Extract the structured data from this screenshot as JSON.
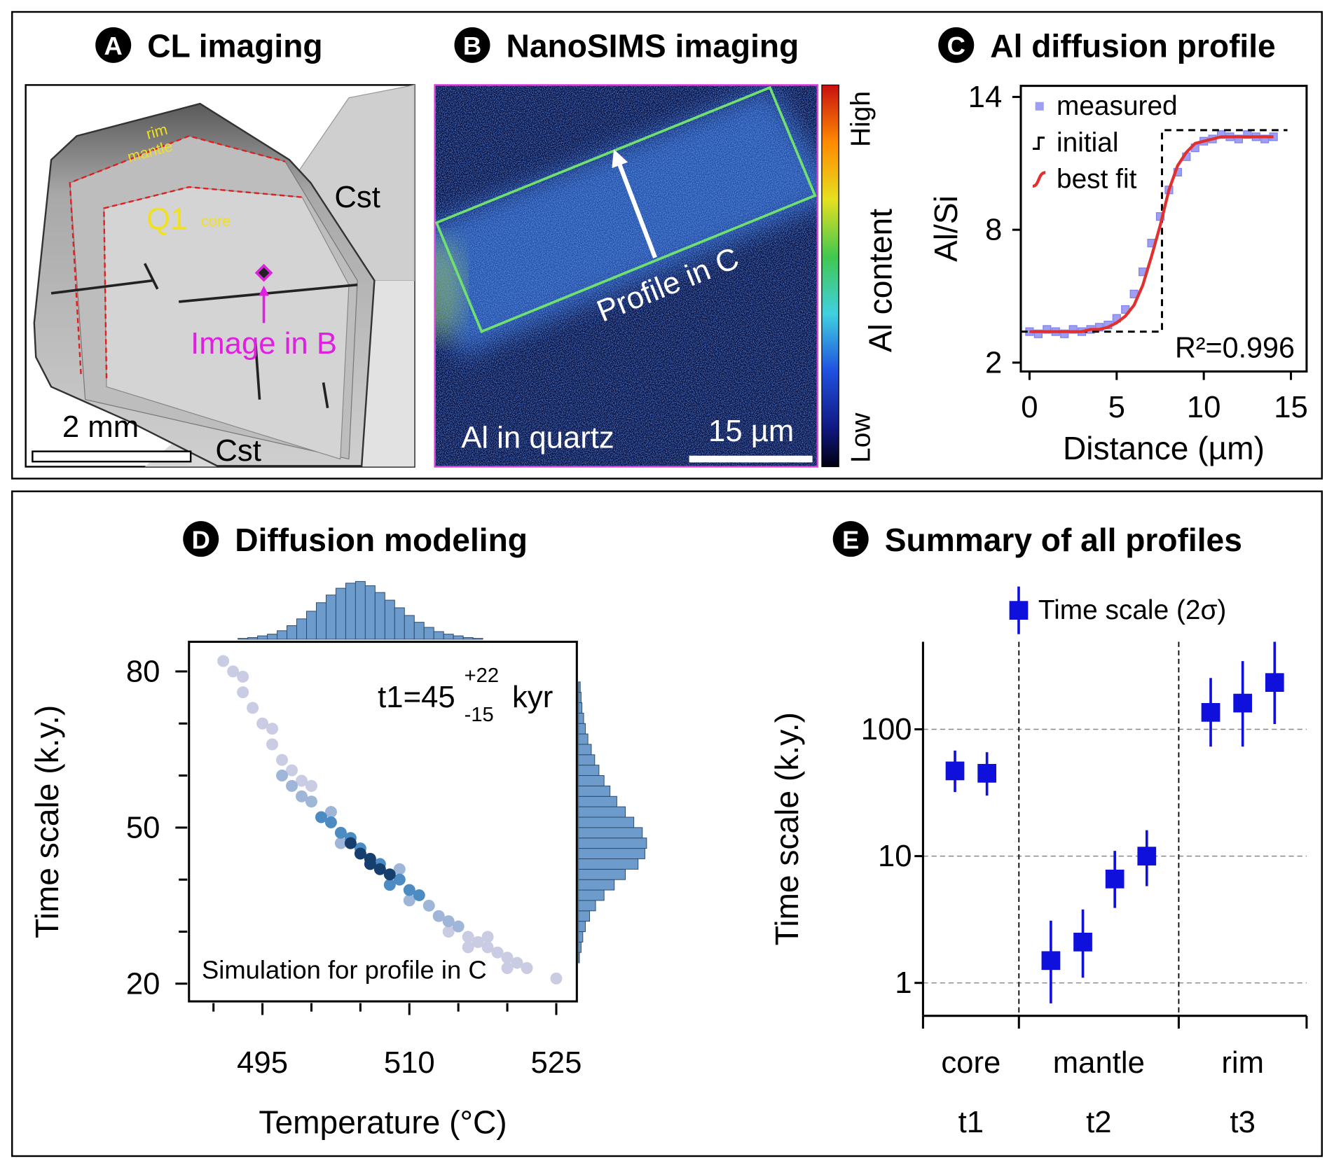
{
  "panels": [
    {
      "label": "A",
      "title": "CL imaging",
      "annotations": [
        "rim",
        "mantle",
        "Q1",
        "core",
        "Cst",
        "Cst",
        "Image in B",
        "2 mm"
      ]
    },
    {
      "label": "B",
      "title": "NanoSIMS imaging",
      "annotations": [
        "Profile in C",
        "Al in quartz",
        "15 µm",
        "High",
        "Low",
        "Al content"
      ]
    }
  ],
  "chart_data": [
    {
      "type": "line",
      "label": "C",
      "title": "Al diffusion profile",
      "xlabel": "Distance (µm)",
      "ylabel": "Al/Si",
      "xlim": [
        -0.5,
        15.9
      ],
      "ylim": [
        1.6,
        14.5
      ],
      "xticks": [
        0,
        5,
        10,
        15
      ],
      "yticks": [
        2,
        8,
        14
      ],
      "legend": "upper left",
      "annotation": "R²=0.996",
      "series": [
        {
          "name": "measured",
          "type": "scatter",
          "color": "#7f7fee",
          "x": [
            0,
            0.5,
            1,
            1.5,
            2,
            2.5,
            3,
            3.5,
            4,
            4.5,
            5,
            5.5,
            6,
            6.5,
            7,
            7.5,
            8,
            8.5,
            9,
            9.5,
            10,
            10.5,
            11,
            11.5,
            12,
            12.5,
            13,
            13.5,
            14
          ],
          "values": [
            3.4,
            3.3,
            3.5,
            3.4,
            3.3,
            3.5,
            3.4,
            3.5,
            3.6,
            3.7,
            4.0,
            4.4,
            5.1,
            6.1,
            7.4,
            8.6,
            9.8,
            10.6,
            11.3,
            11.7,
            12.0,
            12.1,
            12.3,
            12.2,
            12.1,
            12.3,
            12.2,
            12.1,
            12.2
          ]
        },
        {
          "name": "initial",
          "type": "line",
          "style": "dashed",
          "color": "#000000",
          "x": [
            -0.5,
            7.6,
            7.6,
            14.8
          ],
          "values": [
            3.4,
            3.4,
            12.5,
            12.5
          ]
        },
        {
          "name": "best fit",
          "type": "line",
          "color": "#e03030",
          "x": [
            0,
            0.5,
            1,
            1.5,
            2,
            2.5,
            3,
            3.5,
            4,
            4.5,
            5,
            5.5,
            6,
            6.5,
            7,
            7.5,
            8,
            8.5,
            9,
            9.5,
            10,
            10.5,
            11,
            11.5,
            12,
            12.5,
            13,
            13.5,
            14
          ],
          "values": [
            3.4,
            3.4,
            3.4,
            3.4,
            3.4,
            3.4,
            3.4,
            3.5,
            3.5,
            3.6,
            3.8,
            4.1,
            4.6,
            5.5,
            6.8,
            8.2,
            9.8,
            10.9,
            11.5,
            11.9,
            12.0,
            12.1,
            12.2,
            12.2,
            12.2,
            12.2,
            12.2,
            12.2,
            12.2
          ]
        }
      ]
    },
    {
      "type": "scatter",
      "label": "D",
      "title": "Diffusion modeling",
      "xlabel": "Temperature (°C)",
      "ylabel": "Time scale (k.y.)",
      "xlim": [
        487.5,
        527.1
      ],
      "ylim": [
        16.6,
        85.7
      ],
      "xticks": [
        495,
        510,
        525
      ],
      "xminorticks": [
        490,
        500,
        505,
        515,
        520
      ],
      "yticks": [
        20,
        50,
        80
      ],
      "yminorticks": [
        30,
        40,
        60,
        70
      ],
      "annotation": {
        "text": "t1=45",
        "upper": "+22",
        "lower": "-15",
        "unit": "kyr"
      },
      "note": "Simulation for profile in C",
      "series": [
        {
          "color": "#c9cce2",
          "x": [
            491,
            492,
            493,
            494,
            495,
            496,
            497,
            498,
            499,
            516,
            517,
            518,
            519,
            520,
            521,
            522,
            518,
            496,
            493,
            500,
            514,
            516,
            520,
            525
          ],
          "values": [
            82,
            80,
            76,
            73,
            70,
            66,
            63,
            61,
            59,
            29,
            28,
            27,
            26,
            25,
            24,
            23,
            29,
            69,
            79,
            58,
            30,
            27,
            23,
            21
          ]
        },
        {
          "color": "#9fb6d8",
          "x": [
            499,
            500,
            512,
            513,
            498,
            514,
            502,
            509,
            503,
            510,
            497,
            515
          ],
          "values": [
            56,
            55,
            35,
            33,
            58,
            32,
            53,
            42,
            47,
            36,
            60,
            31
          ]
        },
        {
          "color": "#4d8cc3",
          "x": [
            502,
            503,
            509,
            510,
            504,
            507,
            505,
            508,
            501,
            511
          ],
          "values": [
            51,
            49,
            40,
            38,
            48,
            43,
            46,
            39,
            52,
            37
          ]
        },
        {
          "color": "#173f6e",
          "x": [
            505,
            506,
            507,
            504,
            508,
            506
          ],
          "values": [
            45,
            44,
            42,
            47,
            41,
            43
          ]
        }
      ],
      "top_histogram": {
        "color": "#6d9ccc",
        "bins": [
          492.5,
          493.5,
          494.5,
          495.5,
          496.5,
          497.5,
          498.5,
          499.5,
          500.5,
          501.5,
          502.5,
          503.5,
          504.5,
          505.5,
          506.5,
          507.5,
          508.5,
          509.5,
          510.5,
          511.5,
          512.5,
          513.5,
          514.5,
          515.5,
          516.5,
          517.5
        ],
        "counts": [
          1,
          2,
          4,
          6,
          10,
          16,
          24,
          33,
          43,
          52,
          60,
          66,
          68,
          63,
          55,
          46,
          37,
          28,
          20,
          14,
          9,
          6,
          4,
          2,
          1
        ]
      },
      "right_histogram": {
        "color": "#6d9ccc",
        "bins": [
          24,
          26,
          28,
          30,
          32,
          34,
          36,
          38,
          40,
          42,
          44,
          46,
          48,
          50,
          52,
          54,
          56,
          58,
          60,
          62,
          64,
          66,
          68,
          70,
          72,
          74,
          76,
          78
        ],
        "counts": [
          1,
          3,
          5,
          8,
          13,
          20,
          30,
          42,
          55,
          70,
          78,
          80,
          75,
          65,
          55,
          45,
          37,
          30,
          24,
          19,
          15,
          11,
          8,
          6,
          4,
          3,
          2
        ]
      }
    },
    {
      "type": "errorbar",
      "label": "E",
      "title": "Summary of all profiles",
      "ylabel": "Time scale (k.y.)",
      "yscale": "log",
      "xlim": [
        0,
        12
      ],
      "xticks": [
        0,
        3,
        8,
        12
      ],
      "ylim": [
        0.55,
        490
      ],
      "yticks": [
        1,
        10,
        100
      ],
      "grid": true,
      "legend": "upper center",
      "categories": [
        "core",
        "mantle",
        "rim"
      ],
      "sublabels": [
        "t1",
        "t2",
        "t3"
      ],
      "series": [
        {
          "name": "Time scale (2σ)",
          "color": "#1010dd",
          "x": [
            1,
            2,
            4,
            5,
            6,
            7,
            9,
            10,
            11
          ],
          "values": [
            47,
            45,
            1.5,
            2.1,
            6.6,
            10,
            136,
            161,
            234
          ],
          "lower": [
            32,
            30,
            0.69,
            1.1,
            3.9,
            5.8,
            73,
            73,
            110
          ],
          "upper": [
            68,
            66,
            3.1,
            3.8,
            11,
            16,
            254,
            345,
            500
          ]
        }
      ]
    }
  ]
}
